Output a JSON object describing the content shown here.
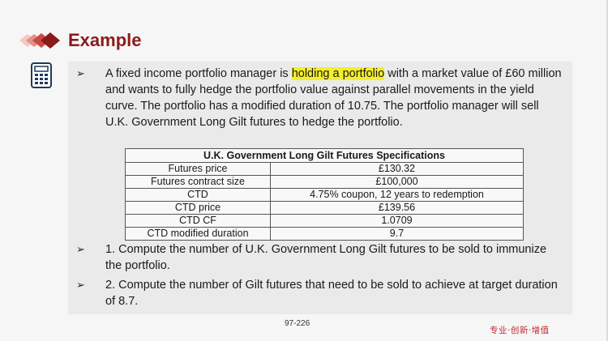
{
  "header": {
    "title": "Example"
  },
  "icons": {
    "logo": "diamond-logo-icon",
    "calculator": "calculator-icon"
  },
  "colors": {
    "title": "#8b1a1a",
    "highlight": "#f4ee2c",
    "tagline": "#c0262d"
  },
  "bullets": {
    "intro": {
      "arrow": "➢",
      "before_highlight": "A fixed income portfolio manager is ",
      "highlight": "holding a portfolio",
      "after_highlight": " with a market value of £60 million and wants to fully hedge the portfolio value against parallel movements in the yield curve. The portfolio has a modified duration of 10.75. The portfolio manager will sell U.K. Government Long Gilt futures to hedge the portfolio."
    },
    "q1": {
      "arrow": "➢",
      "text": "1. Compute the number of U.K. Government Long Gilt futures to be sold to immunize the portfolio."
    },
    "q2": {
      "arrow": "➢",
      "text": "2. Compute the number of Gilt futures that need to be sold to achieve at target duration of 8.7."
    }
  },
  "spec_table": {
    "title": "U.K. Government Long Gilt Futures Specifications",
    "rows": [
      {
        "label": "Futures price",
        "value": "£130.32"
      },
      {
        "label": "Futures contract size",
        "value": "£100,000"
      },
      {
        "label": "CTD",
        "value": "4.75% coupon, 12 years to redemption"
      },
      {
        "label": "CTD price",
        "value": "£139.56"
      },
      {
        "label": "CTD CF",
        "value": "1.0709"
      },
      {
        "label": "CTD modified duration",
        "value": "9.7"
      }
    ]
  },
  "footer": {
    "page_number": "97-226",
    "tagline": "专业·创新·增值"
  }
}
